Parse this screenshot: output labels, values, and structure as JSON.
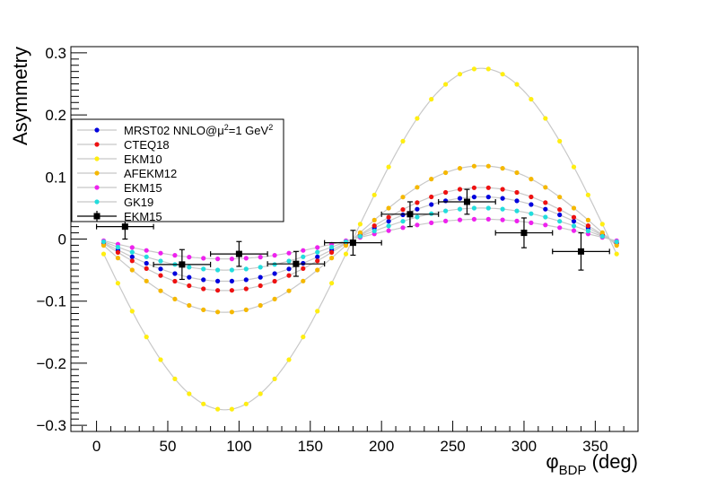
{
  "chart_data": {
    "type": "scatter",
    "title": "",
    "ylabel": "Asymmetry",
    "xlabel": "φ_BDP (deg)",
    "xlim": [
      -18,
      380
    ],
    "ylim": [
      -0.31,
      0.31
    ],
    "x_ticks": [
      0,
      50,
      100,
      150,
      200,
      250,
      300,
      350
    ],
    "x_tick_labels": [
      "0",
      "50",
      "100",
      "150",
      "200",
      "250",
      "300",
      "350"
    ],
    "y_ticks": [
      -0.3,
      -0.2,
      -0.1,
      0,
      0.1,
      0.2,
      0.3
    ],
    "y_tick_labels": [
      "−0.3",
      "−0.2",
      "−0.1",
      "0",
      "0.1",
      "0.2",
      "0.3"
    ],
    "grid": false,
    "legend_position": "left",
    "model_x_range": [
      5,
      365
    ],
    "model_points": 37,
    "series": [
      {
        "name": "MRST02 NNLO@μ²=1 GeV²",
        "name_main": "MRST02 NNLO@",
        "name_mu": "μ",
        "name_sup": "2",
        "name_mid": "=1 GeV",
        "name_sup2": "2",
        "color": "#0000dd",
        "amplitude": -0.068
      },
      {
        "name": "CTEQ18",
        "color": "#ee1111",
        "amplitude": -0.083
      },
      {
        "name": "EKM10",
        "color": "#ffee11",
        "amplitude": -0.275
      },
      {
        "name": "AFEKM12",
        "color": "#f5b800",
        "amplitude": -0.118
      },
      {
        "name": "EKM15",
        "color": "#ee22ee",
        "amplitude": -0.032
      },
      {
        "name": "GK19",
        "color": "#22dddd",
        "amplitude": -0.05
      }
    ],
    "data_series": {
      "name": "EKM15",
      "color": "#000000",
      "points": [
        {
          "x": 20,
          "y": 0.02,
          "xerr": 20,
          "yerr": 0.02
        },
        {
          "x": 60,
          "y": -0.041,
          "xerr": 20,
          "yerr": 0.024
        },
        {
          "x": 100,
          "y": -0.024,
          "xerr": 20,
          "yerr": 0.02
        },
        {
          "x": 140,
          "y": -0.04,
          "xerr": 20,
          "yerr": 0.02
        },
        {
          "x": 180,
          "y": -0.006,
          "xerr": 20,
          "yerr": 0.02
        },
        {
          "x": 220,
          "y": 0.04,
          "xerr": 20,
          "yerr": 0.02
        },
        {
          "x": 260,
          "y": 0.06,
          "xerr": 20,
          "yerr": 0.02
        },
        {
          "x": 300,
          "y": 0.01,
          "xerr": 20,
          "yerr": 0.024
        },
        {
          "x": 340,
          "y": -0.02,
          "xerr": 20,
          "yerr": 0.03
        }
      ]
    }
  }
}
